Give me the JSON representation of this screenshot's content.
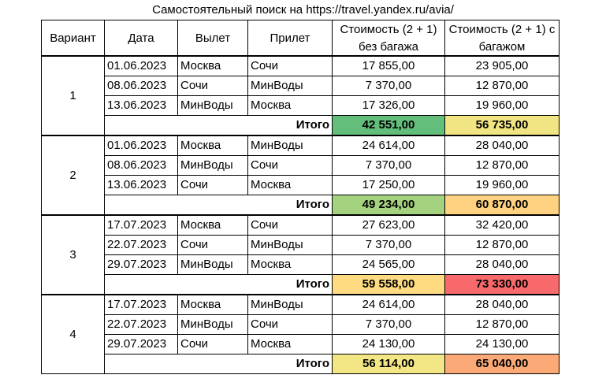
{
  "title": "Самостоятельный поиск на https://travel.yandex.ru/avia/",
  "headers": {
    "variant": "Вариант",
    "date": "Дата",
    "from": "Вылет",
    "to": "Прилет",
    "cost_no_bag_line1": "Стоимость (2 + 1)",
    "cost_no_bag_line2": "без багажа",
    "cost_bag_line1": "Стоимость (2 + 1) с",
    "cost_bag_line2": "багажом"
  },
  "total_label": "Итого",
  "variants": [
    {
      "number": "1",
      "rows": [
        {
          "date": "01.06.2023",
          "from": "Москва",
          "to": "Сочи",
          "no_bag": "17 855,00",
          "bag": "23 905,00"
        },
        {
          "date": "08.06.2023",
          "from": "Сочи",
          "to": "МинВоды",
          "no_bag": "7 370,00",
          "bag": "12 870,00"
        },
        {
          "date": "13.06.2023",
          "from": "МинВоды",
          "to": "Москва",
          "no_bag": "17 326,00",
          "bag": "19 960,00"
        }
      ],
      "total_no_bag": "42 551,00",
      "total_bag": "56 735,00",
      "total_no_bag_color": "#63be7b",
      "total_bag_color": "#f1e583"
    },
    {
      "number": "2",
      "rows": [
        {
          "date": "01.06.2023",
          "from": "Москва",
          "to": "МинВоды",
          "no_bag": "24 614,00",
          "bag": "28 040,00"
        },
        {
          "date": "08.06.2023",
          "from": "МинВоды",
          "to": "Сочи",
          "no_bag": "7 370,00",
          "bag": "12 870,00"
        },
        {
          "date": "13.06.2023",
          "from": "Сочи",
          "to": "Москва",
          "no_bag": "17 250,00",
          "bag": "19 960,00"
        }
      ],
      "total_no_bag": "49 234,00",
      "total_bag": "60 870,00",
      "total_no_bag_color": "#a5d27f",
      "total_bag_color": "#fed280"
    },
    {
      "number": "3",
      "rows": [
        {
          "date": "17.07.2023",
          "from": "Москва",
          "to": "Сочи",
          "no_bag": "27 623,00",
          "bag": "32 420,00"
        },
        {
          "date": "22.07.2023",
          "from": "Сочи",
          "to": "МинВоды",
          "no_bag": "7 370,00",
          "bag": "12 870,00"
        },
        {
          "date": "29.07.2023",
          "from": "МинВоды",
          "to": "Москва",
          "no_bag": "24 565,00",
          "bag": "28 040,00"
        }
      ],
      "total_no_bag": "59 558,00",
      "total_bag": "73 330,00",
      "total_no_bag_color": "#fedb81",
      "total_bag_color": "#f8696b"
    },
    {
      "number": "4",
      "rows": [
        {
          "date": "17.07.2023",
          "from": "Москва",
          "to": "МинВоды",
          "no_bag": "24 614,00",
          "bag": "28 040,00"
        },
        {
          "date": "22.07.2023",
          "from": "МинВоды",
          "to": "Сочи",
          "no_bag": "7 370,00",
          "bag": "12 870,00"
        },
        {
          "date": "29.07.2023",
          "from": "Сочи",
          "to": "Москва",
          "no_bag": "24 130,00",
          "bag": "24 130,00"
        }
      ],
      "total_no_bag": "56 114,00",
      "total_bag": "65 040,00",
      "total_no_bag_color": "#f2e784",
      "total_bag_color": "#fbaa77"
    }
  ]
}
